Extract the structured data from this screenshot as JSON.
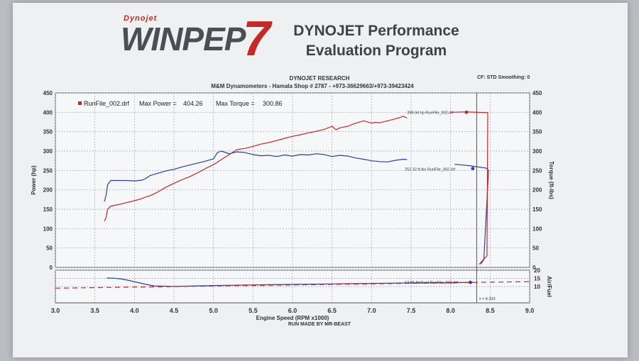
{
  "header": {
    "logo_brand": "Dynojet",
    "logo_word": "WINPEP",
    "logo_version": "7",
    "program_line1": "DYNOJET Performance",
    "program_line2": "Evaluation Program",
    "research": "DYNOJET RESEARCH",
    "shop": "M&M Dynamometers - Hamala Shop # 2787 - +973-36629663/+973-39423424",
    "cf_info": "CF: STD  Smoothing: 0"
  },
  "footer": {
    "run_by": "RUN MADE BY MR-BEAST"
  },
  "colors": {
    "power": "#c62828",
    "torque": "#2b3f9e",
    "afr_target": "#c62828"
  },
  "chart_data": {
    "type": "line",
    "legend": {
      "file": "RunFile_002.drf",
      "max_power_label": "Max Power =",
      "max_power": "404.26",
      "max_torque_label": "Max Torque =",
      "max_torque": "300.86",
      "placement": "top-left"
    },
    "xlabel": "Engine Speed (RPM x1000)",
    "ylabel_left": "Power (hp)",
    "ylabel_right": "Torque (ft-lbs)",
    "ylabel_afr": "Air/Fuel",
    "xlim": [
      3.0,
      9.0
    ],
    "ylim": [
      0,
      450
    ],
    "afr_ylim": [
      0,
      20
    ],
    "x_ticks": [
      "3.0",
      "3.5",
      "4.0",
      "4.5",
      "5.0",
      "5.5",
      "6.0",
      "6.5",
      "7.0",
      "7.5",
      "8.0",
      "8.5",
      "9.0"
    ],
    "y_ticks": [
      "0",
      "50",
      "100",
      "150",
      "200",
      "250",
      "300",
      "350",
      "400",
      "450"
    ],
    "afr_ticks": [
      "10",
      "15",
      "20"
    ],
    "grid": true,
    "annotations": {
      "power_marker": "399.94 hp RunFile_002.drf",
      "torque_marker": "252.32 ft-lbs RunFile_002.drf",
      "afr_marker": "12.55 Air/Fuel RunFile_002.drf",
      "lambda_marker": "λ = 8.333"
    },
    "series": [
      {
        "name": "Power",
        "x": [
          3.62,
          3.64,
          3.66,
          3.7,
          3.8,
          3.9,
          4.0,
          4.1,
          4.15,
          4.2,
          4.3,
          4.4,
          4.5,
          4.6,
          4.7,
          4.8,
          4.9,
          5.0,
          5.1,
          5.2,
          5.3,
          5.4,
          5.5,
          5.6,
          5.7,
          5.8,
          5.9,
          6.0,
          6.1,
          6.2,
          6.3,
          6.4,
          6.5,
          6.55,
          6.6,
          6.7,
          6.8,
          6.9,
          7.0,
          7.05,
          7.1,
          7.2,
          7.3,
          7.35,
          7.4,
          7.45
        ],
        "values": [
          119,
          128,
          150,
          158,
          162,
          167,
          172,
          178,
          182,
          185,
          195,
          207,
          217,
          226,
          234,
          244,
          255,
          265,
          278,
          291,
          304,
          307,
          312,
          318,
          322,
          327,
          333,
          338,
          342,
          347,
          351,
          356,
          364,
          355,
          360,
          364,
          372,
          378,
          372,
          374,
          373,
          378,
          383,
          386,
          390,
          385
        ]
      },
      {
        "name": "Torque",
        "x": [
          3.62,
          3.64,
          3.66,
          3.7,
          3.8,
          3.9,
          4.0,
          4.1,
          4.15,
          4.2,
          4.3,
          4.4,
          4.5,
          4.6,
          4.7,
          4.8,
          4.9,
          5.0,
          5.05,
          5.1,
          5.2,
          5.3,
          5.4,
          5.5,
          5.6,
          5.7,
          5.8,
          5.9,
          6.0,
          6.1,
          6.2,
          6.3,
          6.4,
          6.5,
          6.6,
          6.7,
          6.8,
          6.9,
          7.0,
          7.1,
          7.2,
          7.3,
          7.4,
          7.45
        ],
        "values": [
          170,
          185,
          213,
          224,
          224,
          224,
          223,
          225,
          230,
          237,
          243,
          249,
          253,
          259,
          264,
          269,
          274,
          280,
          296,
          300,
          293,
          298,
          296,
          291,
          288,
          289,
          286,
          290,
          287,
          291,
          290,
          293,
          291,
          286,
          289,
          287,
          282,
          279,
          275,
          273,
          272,
          276,
          279,
          278
        ]
      },
      {
        "name": "Air/Fuel",
        "x": [
          3.65,
          3.75,
          3.85,
          3.95,
          4.05,
          4.15,
          4.25,
          4.5,
          5.0,
          5.5,
          6.0,
          6.5,
          7.0,
          7.5,
          8.0,
          8.3
        ],
        "values": [
          15.2,
          15.1,
          14.5,
          13.5,
          12.4,
          11.3,
          10.4,
          10.1,
          10.6,
          11.0,
          11.3,
          11.6,
          11.9,
          12.2,
          12.4,
          12.55
        ]
      },
      {
        "name": "AFR Target",
        "x": [
          3.0,
          9.0
        ],
        "values": [
          9.0,
          13.0
        ]
      }
    ]
  }
}
